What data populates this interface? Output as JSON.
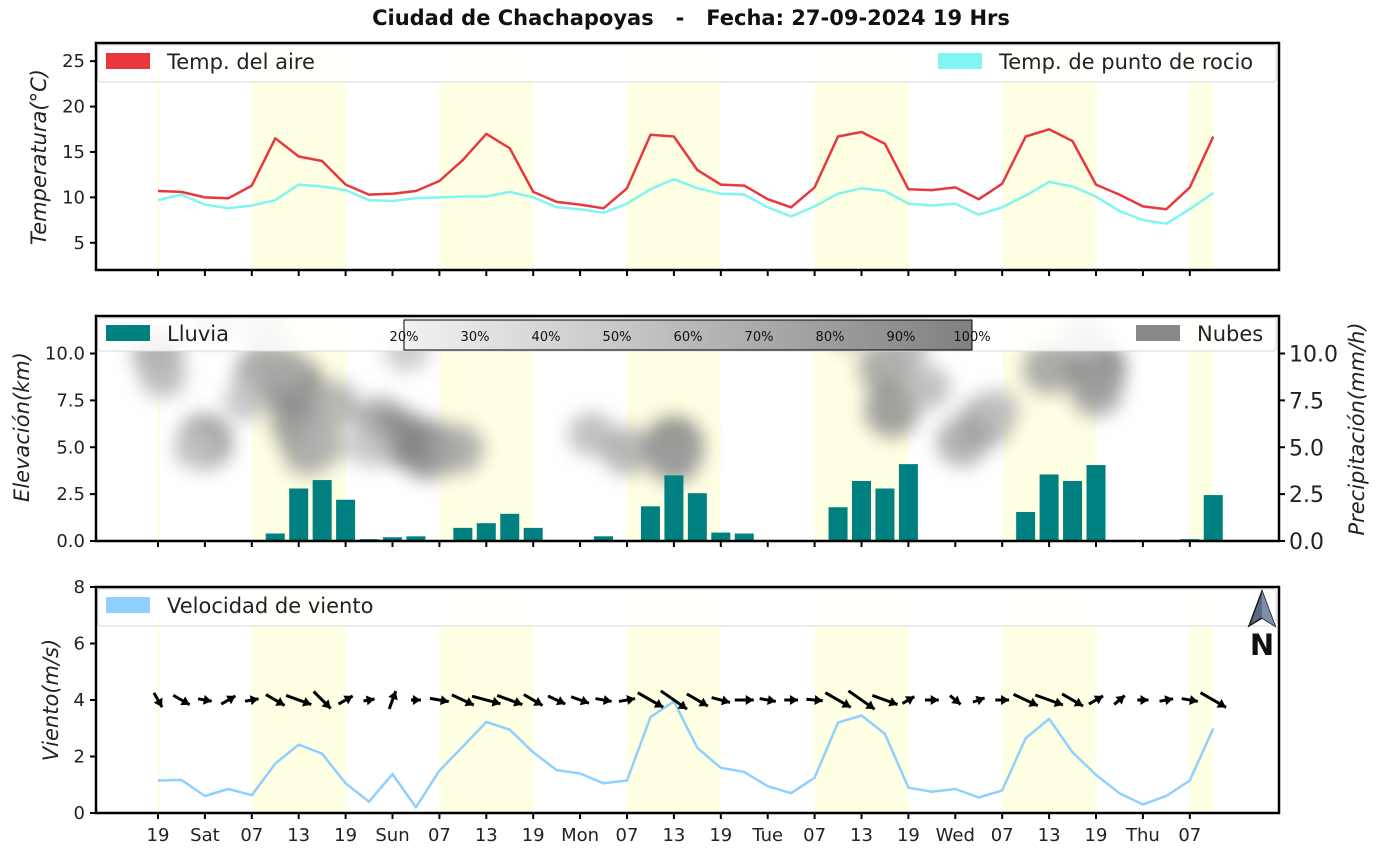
{
  "title": "Ciudad de Chachapoyas   -   Fecha: 27-09-2024 19 Hrs",
  "colors": {
    "air_temp": "#e8383d",
    "dew_point": "#80f5f2",
    "rain": "#008080",
    "clouds": "#888888",
    "wind": "#90d0ff",
    "daylight_band": "#ffffe0"
  },
  "compass": {
    "icon": "north-arrow-icon",
    "label": "N"
  },
  "x_ticks": [
    "19",
    "Sat",
    "07",
    "13",
    "19",
    "Sun",
    "07",
    "13",
    "19",
    "Mon",
    "07",
    "13",
    "19",
    "Tue",
    "07",
    "13",
    "19",
    "Wed",
    "07",
    "13",
    "19",
    "Thu",
    "07"
  ],
  "chart_data": [
    {
      "type": "line",
      "ylabel": "Temperatura(°C)",
      "ylim": [
        2,
        27
      ],
      "yticks": [
        "5",
        "10",
        "15",
        "20",
        "25"
      ],
      "legend": [
        "Temp. del aire",
        "Temp. de punto de rocio"
      ],
      "series": [
        {
          "name": "Temp. del aire",
          "values": [
            10.7,
            10.6,
            10.0,
            9.9,
            11.3,
            16.5,
            14.5,
            14.0,
            11.4,
            10.3,
            10.4,
            10.7,
            11.8,
            14.1,
            17.0,
            15.4,
            10.6,
            9.5,
            9.2,
            8.8,
            11.0,
            16.9,
            16.7,
            13.0,
            11.4,
            11.3,
            9.8,
            8.9,
            11.1,
            16.7,
            17.2,
            15.9,
            10.9,
            10.8,
            11.1,
            9.8,
            11.5,
            16.7,
            17.5,
            16.2,
            11.4,
            10.3,
            9.0,
            8.7,
            11.1,
            16.7
          ]
        },
        {
          "name": "Temp. de punto de rocio",
          "values": [
            9.7,
            10.3,
            9.2,
            8.8,
            9.1,
            9.7,
            11.4,
            11.2,
            10.8,
            9.7,
            9.6,
            9.9,
            10.0,
            10.1,
            10.1,
            10.6,
            10.0,
            8.9,
            8.7,
            8.3,
            9.3,
            10.9,
            12.0,
            11.0,
            10.4,
            10.3,
            8.9,
            7.9,
            9.0,
            10.4,
            11.0,
            10.7,
            9.3,
            9.1,
            9.3,
            8.1,
            8.9,
            10.2,
            11.7,
            11.2,
            10.1,
            8.5,
            7.5,
            7.1,
            8.7,
            10.5
          ]
        }
      ],
      "daylight": true
    },
    {
      "type": "bar",
      "ylabel": "Elevación(km)",
      "ylabel_right": "Precipitación(mm/h)",
      "ylim": [
        0,
        12
      ],
      "yticks": [
        "0.0",
        "2.5",
        "5.0",
        "7.5",
        "10.0"
      ],
      "legend": [
        "Lluvia",
        "Nubes"
      ],
      "rain_values": [
        0.0,
        0.0,
        0.02,
        0.03,
        0.05,
        0.4,
        2.8,
        3.25,
        2.2,
        0.1,
        0.2,
        0.25,
        0.05,
        0.7,
        0.95,
        1.45,
        0.7,
        0.0,
        0.0,
        0.25,
        0.05,
        1.85,
        3.5,
        2.55,
        0.45,
        0.4,
        0.05,
        0.05,
        0.05,
        1.8,
        3.2,
        2.8,
        4.1,
        0.05,
        0.0,
        0.0,
        0.05,
        1.55,
        3.55,
        3.2,
        4.05,
        0.0,
        0.0,
        0.05,
        0.1,
        2.45
      ],
      "cloud_colorbar": [
        "20%",
        "30%",
        "40%",
        "50%",
        "60%",
        "70%",
        "80%",
        "90%",
        "100%"
      ],
      "cloud_cells": [
        {
          "t": 0,
          "z": 10.0,
          "c": 0.55
        },
        {
          "t": 0.2,
          "z": 8.8,
          "c": 0.4
        },
        {
          "t": 2.0,
          "z": 5.3,
          "c": 0.7
        },
        {
          "t": 1.6,
          "z": 4.9,
          "c": 0.3
        },
        {
          "t": 4.4,
          "z": 9.0,
          "c": 0.6
        },
        {
          "t": 3.8,
          "z": 7.5,
          "c": 0.35
        },
        {
          "t": 5.8,
          "z": 8.2,
          "c": 0.85
        },
        {
          "t": 6.0,
          "z": 6.3,
          "c": 0.7
        },
        {
          "t": 6.4,
          "z": 4.9,
          "c": 0.6
        },
        {
          "t": 5.3,
          "z": 9.2,
          "c": 0.5
        },
        {
          "t": 7.5,
          "z": 7.3,
          "c": 0.5
        },
        {
          "t": 7.0,
          "z": 5.2,
          "c": 0.45
        },
        {
          "t": 9.5,
          "z": 6.3,
          "c": 0.6
        },
        {
          "t": 10.3,
          "z": 5.5,
          "c": 0.75
        },
        {
          "t": 11.5,
          "z": 4.9,
          "c": 0.8
        },
        {
          "t": 12.8,
          "z": 4.9,
          "c": 0.55
        },
        {
          "t": 9.0,
          "z": 5.0,
          "c": 0.3
        },
        {
          "t": 10.6,
          "z": 10.1,
          "c": 0.3
        },
        {
          "t": 18.5,
          "z": 5.7,
          "c": 0.4
        },
        {
          "t": 20.0,
          "z": 4.8,
          "c": 0.5
        },
        {
          "t": 22.0,
          "z": 5.0,
          "c": 0.85
        },
        {
          "t": 22.0,
          "z": 4.4,
          "c": 0.6
        },
        {
          "t": 31.0,
          "z": 9.2,
          "c": 0.6
        },
        {
          "t": 31.3,
          "z": 7.0,
          "c": 0.7
        },
        {
          "t": 31.8,
          "z": 10.3,
          "c": 0.45
        },
        {
          "t": 32.8,
          "z": 8.2,
          "c": 0.4
        },
        {
          "t": 34.3,
          "z": 5.3,
          "c": 0.55
        },
        {
          "t": 35.3,
          "z": 6.4,
          "c": 0.6
        },
        {
          "t": 35.8,
          "z": 7.0,
          "c": 0.35
        },
        {
          "t": 29.5,
          "z": 11.2,
          "c": 0.3
        },
        {
          "t": 38.0,
          "z": 9.2,
          "c": 0.6
        },
        {
          "t": 40.0,
          "z": 9.2,
          "c": 0.85
        },
        {
          "t": 40.0,
          "z": 8.0,
          "c": 0.6
        },
        {
          "t": 39.5,
          "z": 10.8,
          "c": 0.35
        },
        {
          "t": 2.4,
          "z": 11.6,
          "c": 0.3
        },
        {
          "t": 4.6,
          "z": 11.4,
          "c": 0.3
        }
      ],
      "daylight": true
    },
    {
      "type": "line",
      "ylabel": "Viento(m/s)",
      "ylim": [
        0,
        8
      ],
      "yticks": [
        "0",
        "2",
        "4",
        "6",
        "8"
      ],
      "legend": [
        "Velocidad de viento"
      ],
      "series": [
        {
          "name": "Velocidad de viento",
          "values": [
            1.15,
            1.17,
            0.6,
            0.85,
            0.63,
            1.75,
            2.42,
            2.1,
            1.05,
            0.4,
            1.38,
            0.2,
            1.5,
            2.35,
            3.22,
            2.95,
            2.15,
            1.52,
            1.4,
            1.05,
            1.15,
            3.4,
            3.95,
            2.3,
            1.6,
            1.45,
            0.95,
            0.7,
            1.25,
            3.2,
            3.45,
            2.8,
            0.9,
            0.75,
            0.85,
            0.55,
            0.8,
            2.65,
            3.33,
            2.15,
            1.35,
            0.7,
            0.3,
            0.6,
            1.15,
            3.0
          ]
        }
      ],
      "wind_direction_deg": [
        150,
        120,
        100,
        60,
        80,
        120,
        110,
        135,
        60,
        80,
        20,
        90,
        100,
        115,
        105,
        110,
        120,
        115,
        110,
        100,
        80,
        120,
        125,
        120,
        105,
        90,
        100,
        90,
        95,
        120,
        125,
        110,
        60,
        90,
        130,
        70,
        90,
        115,
        110,
        120,
        60,
        50,
        90,
        80,
        100,
        120
      ],
      "wind_arrow_strength": [
        0.4,
        0.5,
        0.3,
        0.4,
        0.3,
        0.6,
        0.8,
        0.7,
        0.4,
        0.2,
        0.5,
        0.15,
        0.5,
        0.7,
        0.9,
        0.8,
        0.6,
        0.5,
        0.5,
        0.4,
        0.4,
        0.9,
        1.0,
        0.7,
        0.5,
        0.5,
        0.4,
        0.3,
        0.4,
        0.9,
        1.0,
        0.8,
        0.3,
        0.3,
        0.3,
        0.25,
        0.3,
        0.8,
        0.9,
        0.7,
        0.4,
        0.3,
        0.2,
        0.3,
        0.4,
        0.9
      ],
      "daylight": true
    }
  ]
}
